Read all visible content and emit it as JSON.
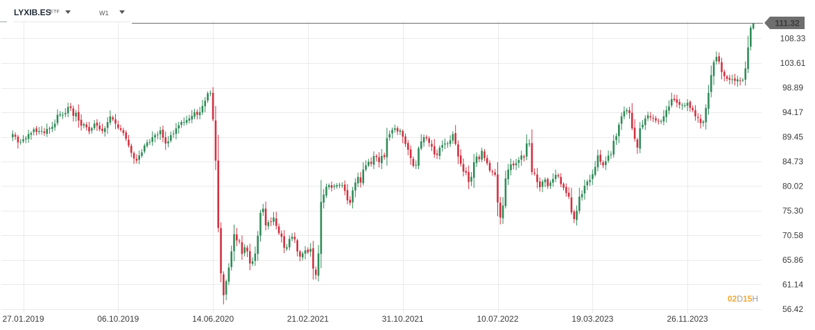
{
  "header": {
    "symbol": "LYXIB.ES",
    "type_badge": "ETF",
    "timeframe": "W1"
  },
  "countdown": {
    "days": "02",
    "days_unit": "D",
    "hours": "15",
    "hours_unit": "H"
  },
  "colors": {
    "up": "#2e8b57",
    "down": "#d32f3f",
    "grid": "#eaeaea",
    "price_line": "#6b6b6b",
    "price_tag": "#6e6e6e",
    "countdown": "#f0a830"
  },
  "chart_data": {
    "type": "candlestick",
    "symbol": "LYXIB.ES",
    "timeframe": "W1",
    "last_price": 111.32,
    "ylim": [
      56.42,
      111.32
    ],
    "y_ticks": [
      108.33,
      103.61,
      98.89,
      94.17,
      89.45,
      84.73,
      80.02,
      75.3,
      70.58,
      65.86,
      61.14,
      56.42
    ],
    "y_tick_labels": [
      "108.33",
      "103.61",
      "98.89",
      "94.17",
      "89.45",
      "84.73",
      "80.02",
      "75.30",
      "70.58",
      "65.86",
      "61.14",
      "56.42"
    ],
    "x_tick_labels": [
      "27.01.2019",
      "06.10.2019",
      "14.06.2020",
      "21.02.2021",
      "31.10.2021",
      "10.07.2022",
      "19.03.2023",
      "26.11.2023"
    ],
    "total_weeks": 268,
    "x_tick_weeks": [
      4,
      40,
      76,
      112,
      148,
      184,
      220,
      256
    ],
    "closes": [
      90.0,
      89.5,
      88.4,
      88.5,
      89.0,
      89.2,
      90.0,
      90.2,
      90.9,
      90.4,
      90.6,
      90.6,
      90.2,
      91.0,
      91.1,
      91.4,
      92.0,
      93.7,
      93.8,
      93.7,
      94.0,
      95.2,
      95.0,
      93.5,
      94.1,
      92.6,
      91.6,
      91.9,
      91.3,
      90.5,
      91.1,
      92.0,
      91.6,
      90.9,
      90.6,
      91.1,
      92.3,
      93.4,
      92.8,
      92.0,
      91.2,
      90.8,
      90.2,
      89.1,
      87.8,
      86.4,
      85.3,
      84.9,
      85.9,
      86.5,
      87.8,
      88.4,
      88.5,
      89.4,
      89.8,
      89.9,
      90.7,
      89.3,
      88.2,
      88.6,
      89.8,
      90.1,
      91.1,
      91.7,
      92.3,
      92.3,
      92.7,
      93.0,
      93.5,
      94.2,
      93.7,
      94.2,
      95.4,
      96.4,
      97.8,
      97.9,
      92.8,
      84.9,
      72.0,
      63.3,
      59.1,
      61.8,
      64.4,
      67.5,
      70.8,
      69.6,
      69.4,
      67.0,
      68.3,
      67.5,
      65.2,
      65.6,
      67.1,
      70.5,
      74.9,
      75.7,
      72.5,
      73.1,
      73.2,
      74.0,
      72.4,
      71.0,
      70.3,
      68.2,
      68.3,
      69.9,
      70.3,
      69.8,
      67.5,
      66.5,
      67.1,
      67.7,
      67.3,
      68.0,
      64.2,
      63.0,
      67.1,
      77.0,
      78.4,
      79.9,
      80.2,
      79.7,
      80.1,
      80.2,
      80.3,
      80.2,
      79.1,
      77.3,
      76.8,
      79.2,
      80.7,
      81.8,
      80.7,
      83.2,
      84.0,
      84.7,
      84.3,
      85.8,
      85.6,
      84.6,
      85.8,
      85.6,
      89.2,
      90.0,
      90.8,
      91.1,
      90.5,
      90.7,
      89.5,
      88.1,
      87.0,
      85.4,
      83.9,
      84.1,
      87.3,
      88.6,
      89.4,
      89.2,
      88.3,
      87.6,
      86.1,
      86.0,
      87.4,
      87.9,
      88.2,
      88.2,
      88.8,
      90.0,
      88.1,
      85.7,
      84.3,
      82.8,
      82.6,
      80.8,
      81.8,
      84.6,
      85.7,
      85.2,
      86.8,
      85.4,
      84.4,
      83.0,
      82.7,
      82.2,
      76.9,
      74.0,
      76.3,
      81.5,
      83.2,
      84.2,
      84.0,
      84.4,
      85.0,
      85.9,
      85.5,
      88.2,
      88.2,
      82.7,
      82.4,
      80.8,
      79.8,
      80.9,
      81.3,
      80.0,
      80.7,
      81.4,
      82.2,
      81.9,
      80.4,
      79.7,
      78.7,
      78.0,
      75.0,
      73.7,
      75.3,
      78.0,
      78.5,
      80.1,
      80.9,
      81.2,
      82.3,
      83.7,
      85.9,
      84.7,
      84.0,
      84.8,
      85.9,
      86.1,
      88.7,
      89.6,
      91.8,
      93.4,
      94.4,
      94.6,
      94.0,
      91.1,
      89.1,
      87.4,
      91.1,
      91.8,
      93.0,
      93.6,
      93.2,
      93.0,
      92.6,
      92.5,
      92.5,
      93.4,
      94.6,
      95.3,
      96.7,
      96.5,
      96.0,
      95.6,
      95.6,
      95.5,
      96.0,
      95.0,
      94.6,
      93.4,
      93.1,
      92.1,
      92.4,
      95.0,
      97.9,
      101.3,
      103.8,
      104.8,
      103.9,
      101.9,
      101.1,
      100.6,
      100.4,
      100.5,
      100.2,
      100.5,
      100.2,
      100.4,
      102.6,
      106.6,
      110.4,
      111.32
    ]
  }
}
